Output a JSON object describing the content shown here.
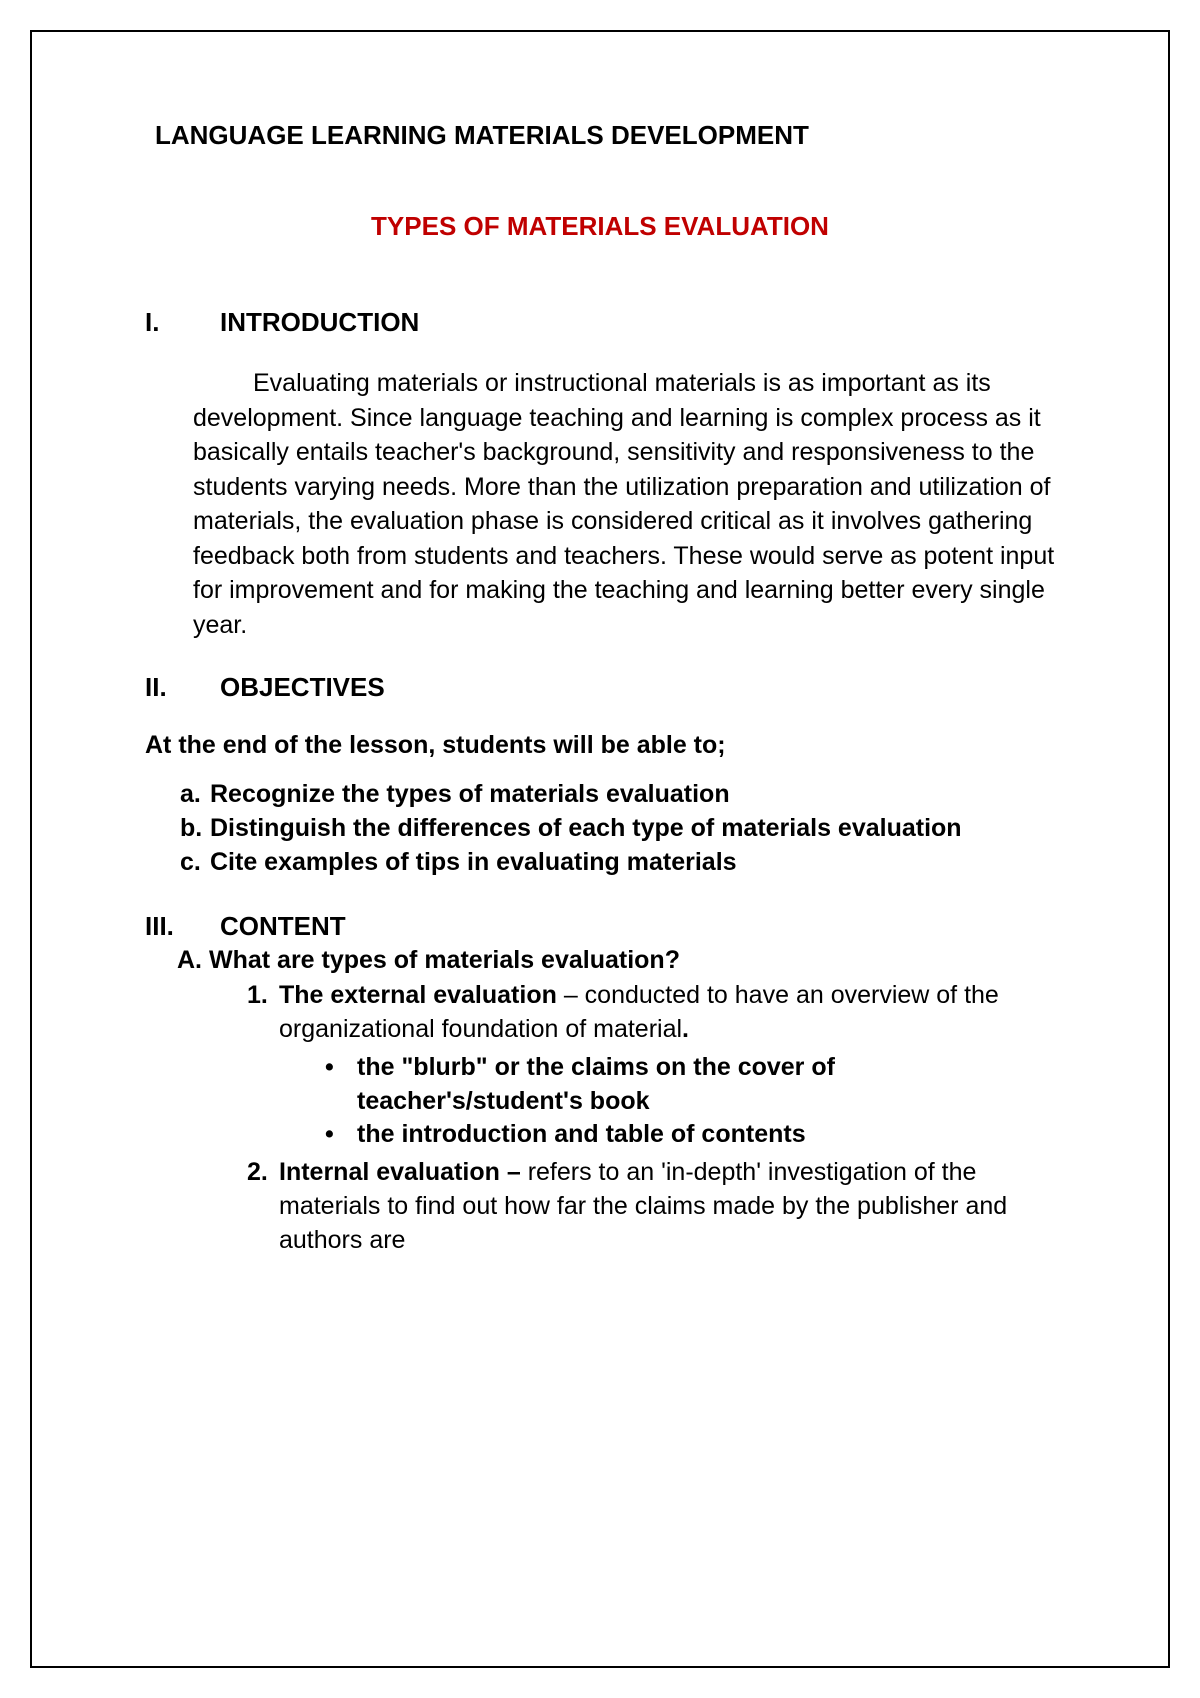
{
  "colors": {
    "text": "#000000",
    "subtitle": "#c00000",
    "background": "#ffffff",
    "border": "#000000"
  },
  "typography": {
    "font_family": "Verdana",
    "title_fontsize": 26,
    "body_fontsize": 25,
    "line_height": 1.38
  },
  "main_title": "LANGUAGE LEARNING MATERIALS DEVELOPMENT",
  "subtitle": "TYPES OF MATERIALS EVALUATION",
  "sections": {
    "intro": {
      "roman": "I.",
      "heading": "INTRODUCTION",
      "paragraph": "Evaluating materials or instructional materials is as important as its development. Since language teaching and learning is complex process as it basically entails teacher's background, sensitivity and responsiveness to the students varying needs. More than the utilization preparation and utilization of materials, the evaluation phase is considered critical as it involves gathering feedback both from students and teachers. These would serve as potent input for improvement and for making the teaching and learning better every single year."
    },
    "objectives": {
      "roman": "II.",
      "heading": "OBJECTIVES",
      "lead": "At the end of the lesson, students will be able to;",
      "items": [
        {
          "marker": "a.",
          "text": "Recognize the types of materials evaluation"
        },
        {
          "marker": "b.",
          "text": "Distinguish the differences of each type of materials evaluation"
        },
        {
          "marker": "c.",
          "text": "Cite examples of tips in evaluating materials"
        }
      ]
    },
    "content_section": {
      "roman": "III.",
      "heading": "CONTENT",
      "sub_a": {
        "marker": "A.",
        "text": "What are types of materials evaluation?"
      },
      "item1": {
        "marker": "1.",
        "bold_lead": "The external evaluation",
        "rest": " – conducted to have an overview of the organizational foundation of material",
        "trailing_bold": "."
      },
      "item1_bullets": [
        {
          "marker": "•",
          "text": "the \"blurb\" or the claims on the cover of teacher's/student's book"
        },
        {
          "marker": "•",
          "text": "the introduction and table of contents"
        }
      ],
      "item2": {
        "marker": "2.",
        "bold_lead": "Internal evaluation – ",
        "rest": "refers to an 'in-depth' investigation of the materials to find out how far the claims made by the publisher and authors are"
      }
    }
  }
}
